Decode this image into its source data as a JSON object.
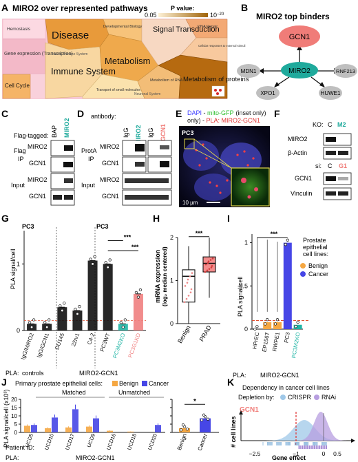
{
  "figure": {
    "panels": [
      "A",
      "B",
      "C",
      "D",
      "E",
      "F",
      "G",
      "H",
      "I",
      "J",
      "K"
    ]
  },
  "panel_a": {
    "title": "MIRO2 over represented pathways",
    "pvalue_label": "P value:",
    "pvalue_min": "0.05",
    "pvalue_max": "10",
    "pvalue_max_exp": "−20",
    "cells": [
      "Disease",
      "Signal Transduction",
      "Metabolism",
      "Immune System",
      "Metabolism of proteins",
      "Cell Cycle",
      "Hemostasis",
      "Gene expression (Transcription)",
      "Developmental Biology",
      "DNA Repair",
      "Cellular responses to external stimuli",
      "Metabolism of RNA",
      "Transport of small molecules",
      "Innate Immune System",
      "Neuronal System"
    ]
  },
  "panel_b": {
    "title": "MIRO2 top binders",
    "center": "MIRO2",
    "nodes": [
      "GCN1",
      "MDN1",
      "RNF213",
      "XPO1",
      "HUWE1"
    ]
  },
  "panel_c": {
    "subtitle": "Flag-tagged:",
    "lanes": [
      "BAP",
      "MIRO2"
    ],
    "sections": [
      "Flag IP",
      "Input"
    ],
    "rows": [
      "MIRO2",
      "GCN1",
      "MIRO2",
      "GCN1"
    ]
  },
  "panel_d": {
    "subtitle": "antibody:",
    "lanes": [
      "IgG",
      "MIRO2",
      "IgG",
      "GCN1"
    ],
    "sections": [
      "ProtA IP",
      "Input"
    ],
    "rows": [
      "MIRO2",
      "GCN1",
      "MIRO2",
      "GCN1"
    ]
  },
  "panel_e": {
    "legend_dapi": "DAPI",
    "legend_mito": "mito-GFP",
    "legend_inset": "(inset only)",
    "legend_pla": "PLA: MIRO2-GCN1",
    "cell_line": "PC3",
    "scale": "10 µm"
  },
  "panel_f": {
    "ko_label": "KO:",
    "ko_lanes": [
      "C",
      "M2"
    ],
    "si_label": "si:",
    "si_lanes": [
      "C",
      "G1"
    ],
    "rows": [
      "MIRO2",
      "β-Actin",
      "GCN1",
      "Vinculin"
    ]
  },
  "panel_g": {
    "ylabel": "PLA signal/cell",
    "cell_line_left": "PC3",
    "cell_line_right": "PC3",
    "sig": "***",
    "group_controls": "controls",
    "group_miro": "MIRO2-GCN1",
    "pla_label": "PLA:"
  },
  "panel_h": {
    "ylabel": "mRNA expression",
    "ylabel2": "(log₂ median centered)",
    "sig": "***"
  },
  "panel_i": {
    "ylabel": "PLA signal/cell",
    "sig": "***",
    "legend_title": "Prostate epithelial cell lines:",
    "legend_benign": "Benign",
    "legend_cancer": "Cancer",
    "group": "MIRO2-GCN1",
    "pla_label": "PLA:"
  },
  "panel_j": {
    "title": "Primary prostate epithelial cells:",
    "legend_benign": "Benign",
    "legend_cancer": "Cancer",
    "group_matched": "Matched",
    "group_unmatched": "Unmatched",
    "ylabel": "PLA signal/cell (x10³)",
    "patient_label": "Patient ID:",
    "group": "MIRO2-GCN1",
    "pla_label": "PLA:",
    "sig": "*"
  },
  "panel_k": {
    "title": "Dependency in cancer cell lines",
    "depletion_label": "Depletion by:",
    "legend_crispr": "CRISPR",
    "legend_rnai": "RNAi",
    "gene": "GCN1",
    "ylabel": "# cell lines",
    "xlabel": "Gene effect"
  },
  "chart_data": [
    {
      "id": "G",
      "type": "bar",
      "categories": [
        "IgG/MIRO2",
        "IgG/GCN1",
        "DU145",
        "22rv1",
        "C4-2",
        "PC3WT",
        "PC3M2KO",
        "PC3G1KD"
      ],
      "values": [
        0.1,
        0.1,
        0.35,
        0.3,
        1.05,
        1.0,
        0.1,
        0.55
      ],
      "colors": [
        "#000000",
        "#000000",
        "#000000",
        "#000000",
        "#000000",
        "#000000",
        "#20b5a5",
        "#f08080"
      ],
      "ylim": [
        0,
        1.5
      ],
      "yticks": [
        0,
        1
      ]
    },
    {
      "id": "H",
      "type": "box",
      "categories": [
        "Benign",
        "PRAD"
      ],
      "medians": [
        1.1,
        1.4
      ],
      "q1": [
        0.5,
        1.2
      ],
      "q3": [
        1.25,
        1.55
      ],
      "whisker_low": [
        -0.3,
        0.6
      ],
      "whisker_high": [
        1.8,
        2.0
      ],
      "ylim": [
        0,
        2
      ],
      "yticks": [
        0,
        1,
        2
      ]
    },
    {
      "id": "I",
      "type": "bar",
      "categories": [
        "HPrEC",
        "EP156T",
        "RWPE1",
        "PC3",
        "PC3M2KO"
      ],
      "values": [
        0.0,
        0.08,
        0.08,
        1.0,
        0.05
      ],
      "colors": [
        "#f5a742",
        "#f5a742",
        "#f5a742",
        "#4646e6",
        "#20b5a5"
      ],
      "threshold": 0.1,
      "ylim": [
        0,
        1.1
      ],
      "yticks": [
        0,
        0.5,
        1
      ]
    },
    {
      "id": "J",
      "type": "bar",
      "categories": [
        "UCD5",
        "UCD10",
        "UCD17",
        "UCD9",
        "UCD16",
        "UCD18",
        "UCD20"
      ],
      "series": [
        {
          "name": "Benign",
          "values": [
            4.0,
            2.5,
            3.0,
            3.5,
            1.0,
            0.5,
            0
          ]
        },
        {
          "name": "Cancer",
          "values": [
            4.5,
            9.0,
            14.0,
            8.5,
            0,
            0,
            4.5
          ]
        }
      ],
      "ylim": [
        0,
        20
      ],
      "yticks": [
        0,
        5,
        10,
        15,
        20
      ],
      "summary": {
        "categories": [
          "Benign",
          "Cancer"
        ],
        "values": [
          2.5,
          8.5
        ]
      }
    },
    {
      "id": "K",
      "type": "area",
      "series": [
        {
          "name": "CRISPR",
          "peak": -0.7
        },
        {
          "name": "RNAi",
          "peak": -0.1
        }
      ],
      "gene_effect_gcn1": -1.0,
      "xticks": [
        -2.5,
        -1,
        0,
        0.5
      ]
    }
  ]
}
